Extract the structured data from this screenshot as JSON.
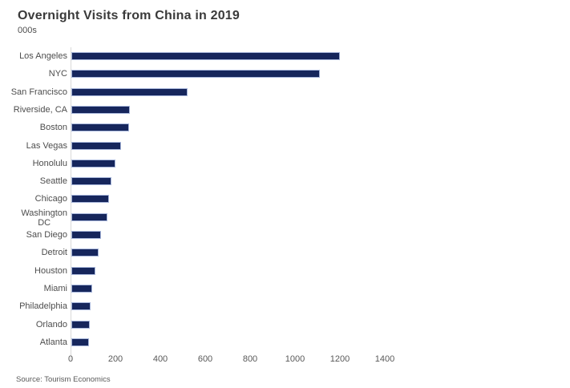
{
  "chart_data": {
    "type": "bar",
    "orientation": "horizontal",
    "title": "Overnight Visits from China in 2019",
    "subtitle": "000s",
    "categories": [
      "Los Angeles",
      "NYC",
      "San Francisco",
      "Riverside, CA",
      "Boston",
      "Las Vegas",
      "Honolulu",
      "Seattle",
      "Chicago",
      "Washington\nDC",
      "San Diego",
      "Detroit",
      "Houston",
      "Miami",
      "Philadelphia",
      "Orlando",
      "Atlanta"
    ],
    "values": [
      1190,
      1100,
      510,
      255,
      250,
      215,
      190,
      170,
      160,
      155,
      125,
      115,
      100,
      85,
      80,
      75,
      70
    ],
    "xlabel": "",
    "ylabel": "",
    "xlim": [
      0,
      1400
    ],
    "x_ticks": [
      0,
      200,
      400,
      600,
      800,
      1000,
      1200,
      1400
    ],
    "grid": false,
    "legend": false,
    "bar_color": "#16265c",
    "bar_border_color": "#a9b8dc"
  },
  "source": "Source: Tourism Economics"
}
